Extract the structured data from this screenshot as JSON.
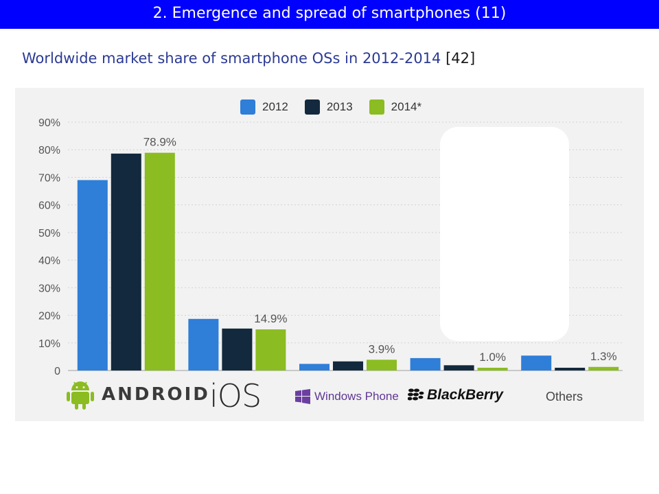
{
  "slide": {
    "banner_title": "2. Emergence and spread of smartphones (11)",
    "subtitle": "Worldwide market share of smartphone OSs in 2012-2014",
    "reference": "[42]"
  },
  "chart_data": {
    "type": "bar",
    "categories": [
      "Android",
      "iOS",
      "Windows Phone",
      "BlackBerry",
      "Others"
    ],
    "category_logos": {
      "android_text": "ANDROID",
      "ios_text": "iOS",
      "windows_phone_text": "Windows Phone",
      "blackberry_text": "BlackBerry",
      "others_text": "Others"
    },
    "series": [
      {
        "name": "2012",
        "color": "#2f7ed8",
        "values": [
          69.0,
          18.7,
          2.4,
          4.5,
          5.4
        ]
      },
      {
        "name": "2013",
        "color": "#13293d",
        "values": [
          78.6,
          15.2,
          3.3,
          1.9,
          1.0
        ]
      },
      {
        "name": "2014*",
        "color": "#8bbc21",
        "values": [
          78.9,
          14.9,
          3.9,
          1.0,
          1.3
        ]
      }
    ],
    "data_labels": [
      "78.9%",
      "14.9%",
      "3.9%",
      "1.0%",
      "1.3%"
    ],
    "y_ticks": [
      "0",
      "10%",
      "20%",
      "30%",
      "40%",
      "50%",
      "60%",
      "70%",
      "80%",
      "90%"
    ],
    "ylim": [
      0,
      90
    ],
    "grid": "horizontal dashed",
    "legend_position": "top"
  }
}
